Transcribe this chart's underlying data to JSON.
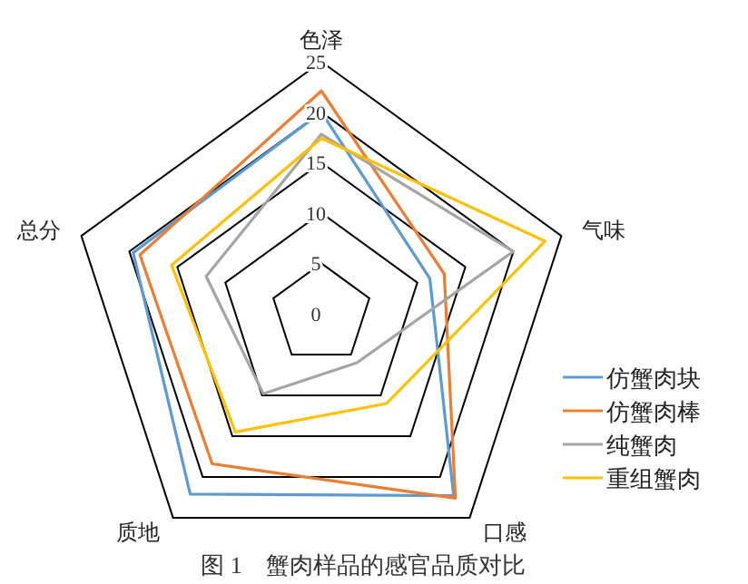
{
  "chart_data": {
    "type": "radar",
    "title": "图 1　蟹肉样品的感官品质对比",
    "categories": [
      "色泽",
      "气味",
      "口感",
      "质地",
      "总分"
    ],
    "ylim": [
      0,
      25
    ],
    "yticks": [
      0,
      5,
      10,
      15,
      20,
      25
    ],
    "legend": "right",
    "grid": true,
    "series": [
      {
        "name": "仿蟹肉块",
        "color": "#5b9bd5",
        "values": [
          20.0,
          11.3,
          22.3,
          22.1,
          19.6
        ]
      },
      {
        "name": "仿蟹肉棒",
        "color": "#ed7d31",
        "values": [
          22.1,
          12.8,
          22.6,
          18.4,
          18.9
        ]
      },
      {
        "name": "纯蟹肉",
        "color": "#a5a5a5",
        "values": [
          17.8,
          20.0,
          6.0,
          9.8,
          12.0
        ]
      },
      {
        "name": "重组蟹肉",
        "color": "#ffc000",
        "values": [
          17.4,
          23.3,
          11.0,
          14.5,
          15.6
        ]
      }
    ]
  }
}
